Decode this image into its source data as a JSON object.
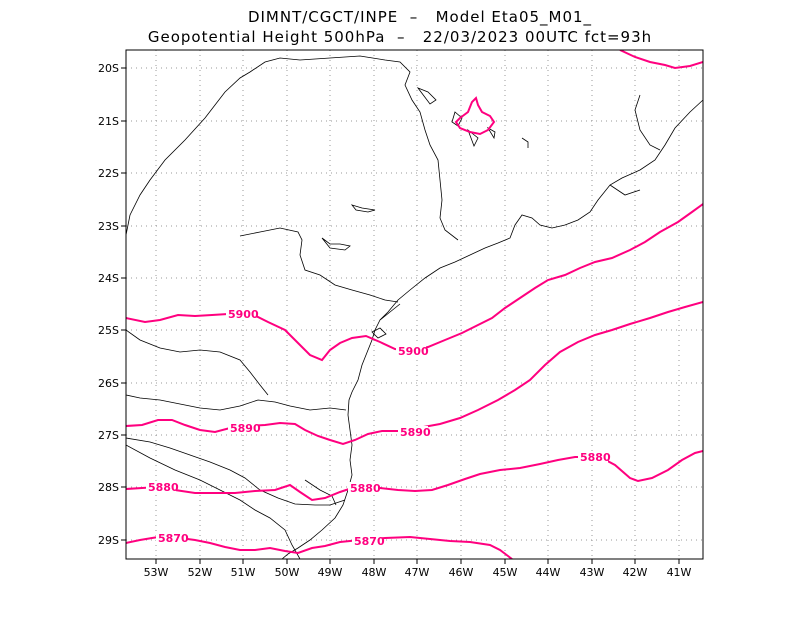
{
  "header": {
    "line1": "DIMNT/CGCT/INPE  –   Model Eta05_M01_",
    "line2": "Geopotential Height 500hPa  –   22/03/2023 00UTC fct=93h"
  },
  "colors": {
    "contour": "#ff007f",
    "coast": "#000000",
    "grid": "#9a9a9a"
  },
  "axes": {
    "lon_labels": [
      "53W",
      "52W",
      "51W",
      "50W",
      "49W",
      "48W",
      "47W",
      "46W",
      "45W",
      "44W",
      "43W",
      "42W",
      "41W"
    ],
    "lat_labels": [
      "20S",
      "21S",
      "22S",
      "23S",
      "24S",
      "25S",
      "26S",
      "27S",
      "28S",
      "29S"
    ]
  },
  "contours": [
    {
      "label": "5900",
      "label2": "5900"
    },
    {
      "label": "5890",
      "label2": "5890"
    },
    {
      "label": "5880",
      "label2": "5880",
      "label3": "5880"
    },
    {
      "label": "5870",
      "label2": "5870"
    }
  ]
}
